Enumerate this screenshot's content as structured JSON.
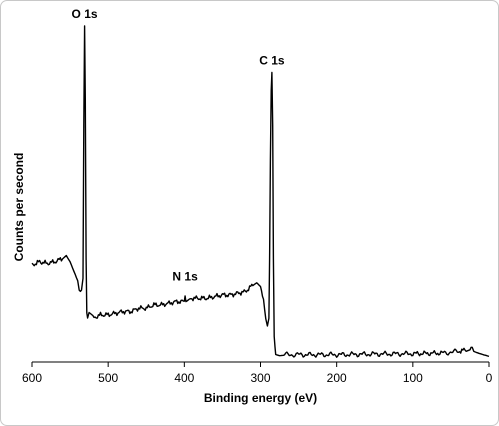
{
  "chart_data": {
    "type": "line",
    "title": "",
    "xlabel": "Binding energy (eV)",
    "ylabel": "Counts per second",
    "xlim": [
      600,
      0
    ],
    "x_reversed": true,
    "ylim": [
      0,
      100
    ],
    "y_ticks_shown": false,
    "grid": false,
    "legend": "none",
    "x_ticks": [
      600,
      500,
      400,
      300,
      200,
      100,
      0
    ],
    "x_tick_labels": [
      "600",
      "500",
      "400",
      "300",
      "200",
      "100",
      "0"
    ],
    "annotations": [
      {
        "text": "O 1s",
        "x": 531,
        "y": 100
      },
      {
        "text": "N 1s",
        "x": 399,
        "y": 21
      },
      {
        "text": "C 1s",
        "x": 285,
        "y": 86
      }
    ],
    "series": [
      {
        "color": "#000000",
        "x": [
          600,
          590,
          580,
          570,
          560,
          555,
          550,
          545,
          540,
          538,
          535,
          533,
          532,
          531,
          530,
          529,
          528,
          527,
          525,
          520,
          510,
          500,
          490,
          480,
          470,
          460,
          450,
          440,
          430,
          420,
          410,
          400,
          399,
          398,
          390,
          380,
          370,
          360,
          350,
          340,
          330,
          320,
          310,
          305,
          300,
          296,
          293,
          291,
          289,
          288,
          287,
          286,
          285,
          284,
          283,
          282,
          281,
          280,
          275,
          270,
          250,
          200,
          150,
          100,
          60,
          40,
          30,
          25,
          22,
          20,
          15,
          10,
          5,
          0
        ],
        "y": [
          28,
          29,
          28.5,
          29,
          30,
          31,
          29,
          26,
          23,
          21,
          20,
          24,
          70,
          100,
          78,
          30,
          14,
          12,
          13,
          12,
          13,
          13,
          13.5,
          14,
          14,
          15,
          15,
          16,
          16,
          16.5,
          17,
          17,
          19,
          17,
          18,
          18,
          18,
          18.5,
          19,
          19,
          19.5,
          20,
          22,
          23,
          22,
          17,
          12,
          9,
          12,
          30,
          60,
          80,
          86,
          70,
          30,
          6,
          3,
          1.5,
          1,
          1,
          1,
          1,
          1.2,
          1.3,
          1.5,
          2,
          2.5,
          3,
          3.5,
          2.5,
          2,
          1.5,
          1,
          0.5
        ]
      }
    ]
  }
}
